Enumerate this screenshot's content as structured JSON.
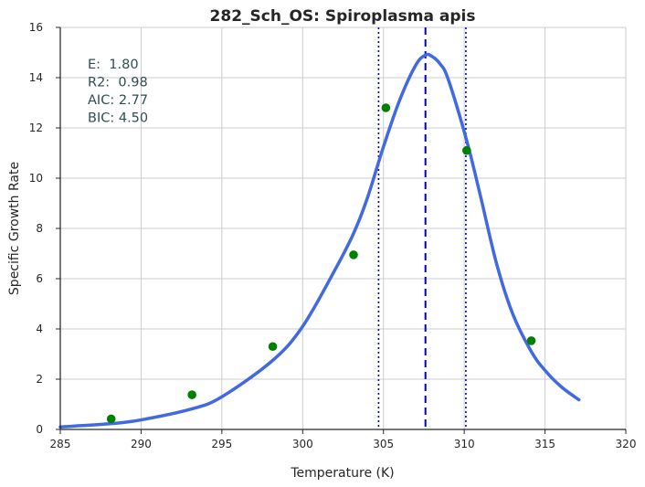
{
  "chart_data": {
    "type": "line",
    "title": "282_Sch_OS: Spiroplasma apis",
    "xlabel": "Temperature (K)",
    "ylabel": "Specific Growth Rate",
    "xlim": [
      285,
      320
    ],
    "ylim": [
      0,
      16
    ],
    "xticks": [
      285,
      290,
      295,
      300,
      305,
      310,
      315,
      320
    ],
    "yticks": [
      0,
      2,
      4,
      6,
      8,
      10,
      12,
      14,
      16
    ],
    "grid": true,
    "annotations": [
      "E:  1.80",
      "R2:  0.98",
      "AIC: 2.77",
      "BIC: 4.50"
    ],
    "series": [
      {
        "kind": "scatter",
        "color": "#008000",
        "x": [
          288.15,
          293.15,
          298.15,
          303.15,
          305.15,
          310.15,
          314.15
        ],
        "y": [
          0.42,
          1.38,
          3.3,
          6.95,
          12.8,
          11.1,
          3.53
        ]
      },
      {
        "kind": "line",
        "color": "#4169e1",
        "x": [
          285.0,
          288.15,
          290.0,
          293.15,
          295.0,
          298.15,
          300.0,
          302.0,
          303.15,
          304.0,
          305.0,
          306.0,
          307.0,
          307.6,
          308.0,
          308.5,
          309.0,
          310.15,
          311.0,
          312.0,
          313.0,
          314.15,
          315.0,
          316.0,
          317.1
        ],
        "y": [
          0.1,
          0.23,
          0.38,
          0.82,
          1.3,
          2.75,
          4.1,
          6.35,
          7.8,
          9.2,
          11.25,
          13.1,
          14.5,
          14.9,
          14.85,
          14.55,
          13.95,
          11.5,
          9.3,
          6.6,
          4.6,
          3.1,
          2.35,
          1.7,
          1.18
        ]
      }
    ],
    "vlines": [
      {
        "x": 304.7,
        "style": "dotted",
        "color": "#0000cd"
      },
      {
        "x": 307.6,
        "style": "dashed",
        "color": "#0000cd"
      },
      {
        "x": 310.1,
        "style": "dotted",
        "color": "#0000cd"
      }
    ]
  }
}
